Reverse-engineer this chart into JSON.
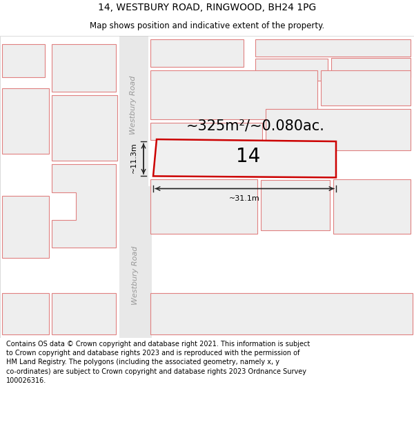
{
  "title": "14, WESTBURY ROAD, RINGWOOD, BH24 1PG",
  "subtitle": "Map shows position and indicative extent of the property.",
  "footer": "Contains OS data © Crown copyright and database right 2021. This information is subject\nto Crown copyright and database rights 2023 and is reproduced with the permission of\nHM Land Registry. The polygons (including the associated geometry, namely x, y\nco-ordinates) are subject to Crown copyright and database rights 2023 Ordnance Survey\n100026316.",
  "bg_color": "#ffffff",
  "building_fill": "#eeeeee",
  "building_outline": "#e08080",
  "road_fill": "#e0e0e0",
  "subject_outline": "#cc0000",
  "subject_fill": "#eeeeee",
  "dim_color": "#222222",
  "road_text_color": "#999999",
  "area_label": "~325m²/~0.080ac.",
  "width_label": "~31.1m",
  "height_label": "~11.3m",
  "property_number": "14",
  "road_label": "Westbury Road",
  "title_fontsize": 10,
  "subtitle_fontsize": 8.5,
  "footer_fontsize": 7,
  "area_fontsize": 15,
  "num_fontsize": 20,
  "road_fontsize": 8,
  "dim_fontsize": 8
}
